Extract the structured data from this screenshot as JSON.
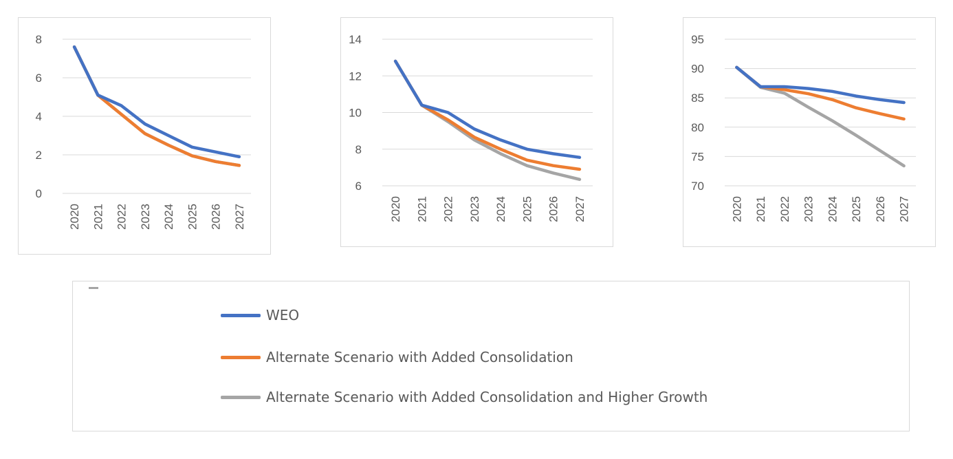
{
  "chart_data": [
    {
      "type": "line",
      "categories": [
        "2020",
        "2021",
        "2022",
        "2023",
        "2024",
        "2025",
        "2026",
        "2027"
      ],
      "ylim": [
        0,
        8
      ],
      "yticks": [
        0,
        2,
        4,
        6,
        8
      ],
      "grid": true,
      "series": [
        {
          "series_ref": 0,
          "values": [
            7.6,
            5.1,
            4.55,
            3.6,
            3.0,
            2.4,
            2.15,
            1.9
          ]
        },
        {
          "series_ref": 1,
          "values": [
            7.6,
            5.1,
            4.1,
            3.1,
            2.5,
            1.95,
            1.65,
            1.45
          ]
        },
        {
          "series_ref": 2,
          "values": [
            7.6,
            5.1,
            4.1,
            3.1,
            2.5,
            1.95,
            1.65,
            1.45
          ]
        }
      ]
    },
    {
      "type": "line",
      "categories": [
        "2020",
        "2021",
        "2022",
        "2023",
        "2024",
        "2025",
        "2026",
        "2027"
      ],
      "ylim": [
        6,
        14
      ],
      "yticks": [
        6,
        8,
        10,
        12,
        14
      ],
      "grid": true,
      "series": [
        {
          "series_ref": 0,
          "values": [
            12.8,
            10.4,
            10.0,
            9.1,
            8.5,
            8.0,
            7.75,
            7.55
          ]
        },
        {
          "series_ref": 1,
          "values": [
            12.8,
            10.4,
            9.6,
            8.65,
            8.0,
            7.4,
            7.1,
            6.9
          ]
        },
        {
          "series_ref": 2,
          "values": [
            12.8,
            10.4,
            9.5,
            8.5,
            7.75,
            7.1,
            6.7,
            6.35
          ]
        }
      ]
    },
    {
      "type": "line",
      "categories": [
        "2020",
        "2021",
        "2022",
        "2023",
        "2024",
        "2025",
        "2026",
        "2027"
      ],
      "ylim": [
        70,
        95
      ],
      "yticks": [
        70,
        75,
        80,
        85,
        90,
        95
      ],
      "grid": true,
      "series": [
        {
          "series_ref": 0,
          "values": [
            90.2,
            86.9,
            86.9,
            86.6,
            86.1,
            85.3,
            84.7,
            84.2
          ]
        },
        {
          "series_ref": 1,
          "values": [
            90.2,
            86.9,
            86.4,
            85.7,
            84.7,
            83.3,
            82.3,
            81.4
          ]
        },
        {
          "series_ref": 2,
          "values": [
            90.2,
            86.8,
            85.8,
            83.4,
            81.1,
            78.6,
            76.0,
            73.4
          ]
        }
      ]
    }
  ],
  "legend": {
    "items": [
      {
        "label": "WEO",
        "color": "#4472c4"
      },
      {
        "label": "Alternate Scenario with Added Consolidation",
        "color": "#ed7d31"
      },
      {
        "label": "Alternate Scenario with Added Consolidation and Higher Growth",
        "color": "#a5a5a5"
      }
    ]
  }
}
